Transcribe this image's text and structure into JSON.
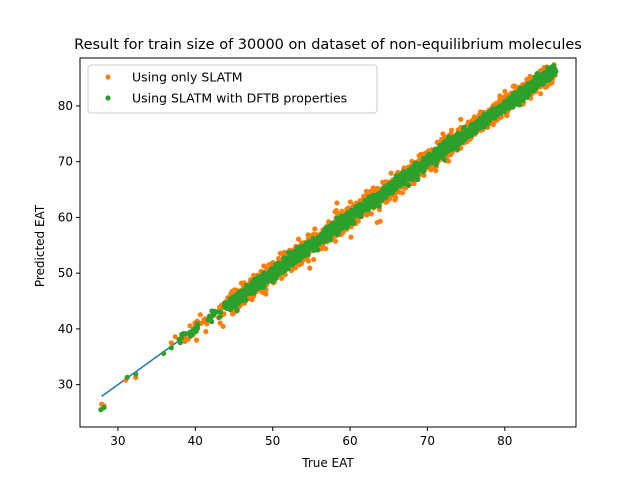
{
  "chart_data": {
    "type": "scatter",
    "title": "Result for train size of 30000 on dataset of non-equilibrium molecules",
    "xlabel": "True EAT",
    "ylabel": "Predicted EAT",
    "xlim": [
      25.1,
      89.2
    ],
    "ylim": [
      22.4,
      88.6
    ],
    "xticks": [
      30,
      40,
      50,
      60,
      70,
      80
    ],
    "yticks": [
      30,
      40,
      50,
      60,
      70,
      80
    ],
    "grid": false,
    "legend_position": "upper-left",
    "reference_line": {
      "x": [
        27.9,
        86.6
      ],
      "y": [
        27.9,
        86.6
      ],
      "color": "#1f77b4"
    },
    "series": [
      {
        "name": "Using only SLATM",
        "color": "#ff7f0e",
        "points": [
          [
            27.9,
            26.5
          ],
          [
            28.2,
            26.2
          ],
          [
            31.0,
            30.8
          ],
          [
            32.3,
            31.3
          ],
          [
            36.9,
            37.5
          ],
          [
            37.4,
            38.6
          ],
          [
            38.4,
            38.9
          ],
          [
            40.0,
            40.4
          ],
          [
            43.6,
            42.6
          ],
          [
            44.2,
            45.6
          ],
          [
            44.6,
            46.3
          ],
          [
            45.8,
            44.6
          ],
          [
            47.0,
            47.9
          ],
          [
            48.5,
            50.3
          ],
          [
            49.4,
            50.6
          ],
          [
            50.6,
            49.8
          ],
          [
            51.3,
            51.9
          ],
          [
            52.2,
            54.1
          ],
          [
            53.0,
            54.8
          ],
          [
            53.3,
            53.6
          ],
          [
            54.1,
            55.4
          ],
          [
            54.6,
            52.2
          ],
          [
            54.8,
            50.9
          ],
          [
            55.5,
            56.3
          ],
          [
            56.7,
            56.1
          ],
          [
            57.4,
            58.7
          ],
          [
            58.2,
            59.9
          ],
          [
            58.3,
            62.6
          ],
          [
            59.1,
            60.5
          ],
          [
            60.4,
            61.5
          ],
          [
            61.0,
            60.0
          ],
          [
            61.8,
            63.6
          ],
          [
            62.4,
            62.0
          ],
          [
            63.0,
            65.3
          ],
          [
            63.5,
            59.1
          ],
          [
            63.9,
            59.3
          ],
          [
            64.6,
            66.4
          ],
          [
            65.4,
            64.7
          ],
          [
            66.2,
            67.9
          ],
          [
            67.1,
            66.5
          ],
          [
            68.0,
            69.1
          ],
          [
            69.0,
            67.8
          ],
          [
            70.3,
            71.5
          ],
          [
            71.3,
            69.9
          ],
          [
            72.0,
            75.0
          ],
          [
            72.6,
            71.9
          ],
          [
            73.4,
            72.2
          ],
          [
            74.3,
            77.6
          ],
          [
            75.4,
            74.3
          ],
          [
            76.7,
            78.4
          ],
          [
            77.8,
            76.9
          ],
          [
            78.6,
            80.1
          ],
          [
            79.5,
            78.6
          ],
          [
            80.4,
            81.9
          ],
          [
            81.4,
            80.8
          ],
          [
            82.4,
            82.0
          ],
          [
            83.6,
            84.7
          ],
          [
            85.0,
            84.3
          ],
          [
            86.0,
            85.9
          ],
          [
            86.5,
            85.5
          ]
        ]
      },
      {
        "name": "Using SLATM with DFTB properties",
        "color": "#2ca02c",
        "points": [
          [
            27.8,
            25.5
          ],
          [
            28.2,
            25.9
          ],
          [
            31.2,
            31.3
          ],
          [
            32.3,
            31.9
          ],
          [
            35.9,
            35.6
          ],
          [
            36.9,
            36.6
          ],
          [
            37.9,
            38.1
          ],
          [
            39.3,
            39.1
          ],
          [
            40.1,
            40.2
          ],
          [
            42.1,
            41.3
          ],
          [
            43.8,
            44.0
          ],
          [
            44.9,
            45.6
          ],
          [
            45.4,
            46.1
          ],
          [
            46.6,
            46.8
          ],
          [
            47.9,
            48.4
          ],
          [
            49.2,
            49.5
          ],
          [
            50.3,
            50.6
          ],
          [
            51.5,
            51.4
          ],
          [
            52.6,
            52.9
          ],
          [
            53.5,
            53.4
          ],
          [
            54.6,
            54.8
          ],
          [
            55.8,
            55.7
          ],
          [
            57.0,
            57.3
          ],
          [
            58.3,
            58.2
          ],
          [
            59.5,
            59.9
          ],
          [
            60.6,
            60.4
          ],
          [
            61.8,
            62.0
          ],
          [
            63.0,
            62.7
          ],
          [
            64.1,
            64.5
          ],
          [
            65.4,
            65.3
          ],
          [
            66.5,
            66.9
          ],
          [
            67.8,
            67.6
          ],
          [
            68.9,
            69.3
          ],
          [
            70.1,
            69.8
          ],
          [
            71.2,
            71.6
          ],
          [
            72.5,
            72.3
          ],
          [
            73.6,
            73.9
          ],
          [
            74.8,
            74.6
          ],
          [
            75.9,
            76.2
          ],
          [
            77.1,
            76.9
          ],
          [
            78.3,
            78.6
          ],
          [
            79.4,
            79.1
          ],
          [
            80.6,
            80.9
          ],
          [
            81.8,
            81.6
          ],
          [
            83.0,
            83.2
          ],
          [
            84.3,
            84.1
          ],
          [
            85.4,
            85.7
          ],
          [
            86.3,
            86.7
          ],
          [
            86.6,
            86.2
          ]
        ]
      }
    ]
  }
}
